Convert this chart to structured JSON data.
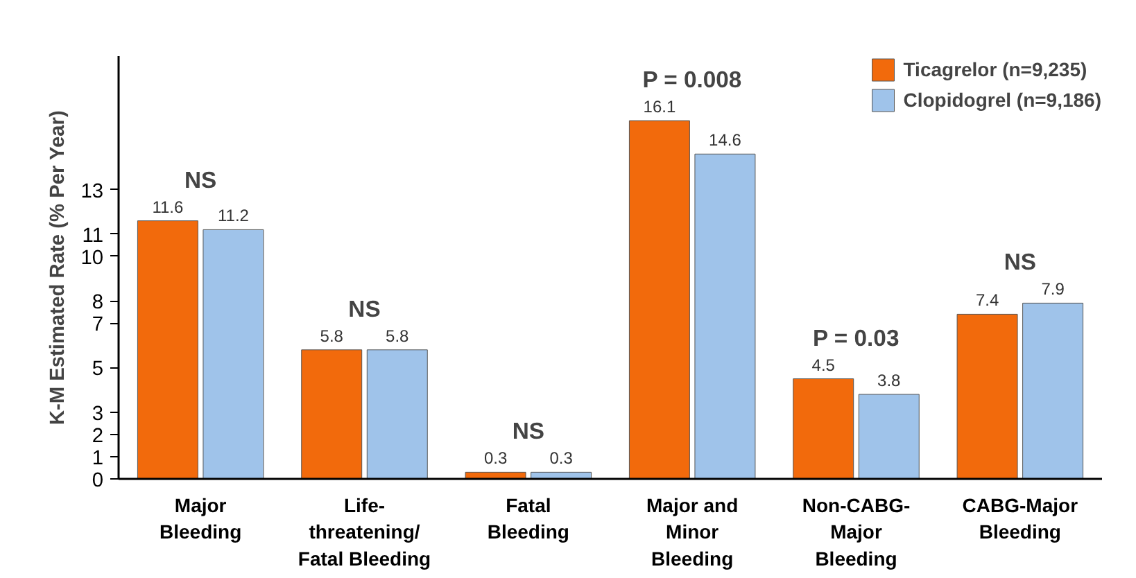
{
  "chart_data": {
    "type": "bar",
    "ylabel": "K-M Estimated Rate (% Per Year)",
    "categories": [
      "Major\nBleeding",
      "Life-\nthreatening/\nFatal Bleeding",
      "Fatal\nBleeding",
      "Major and\nMinor\nBleeding",
      "Non-CABG-\nMajor\nBleeding",
      "CABG-Major\nBleeding"
    ],
    "series": [
      {
        "name": "Ticagrelor (n=9,235)",
        "color": "#f26a0c",
        "values": [
          11.6,
          5.8,
          0.3,
          16.1,
          4.5,
          7.4
        ]
      },
      {
        "name": "Clopidogrel (n=9,186)",
        "color": "#9fc3ea",
        "values": [
          11.2,
          5.8,
          0.3,
          14.6,
          3.8,
          7.9
        ]
      }
    ],
    "ylim": [
      0,
      19
    ],
    "yticks": [
      0,
      1,
      2,
      3,
      5,
      7,
      8,
      10,
      11,
      13
    ],
    "data_labels": true,
    "grid": false,
    "legend": "top right",
    "annotations": [
      "NS",
      "NS",
      "NS",
      "P = 0.008",
      "P = 0.03",
      "NS"
    ]
  }
}
